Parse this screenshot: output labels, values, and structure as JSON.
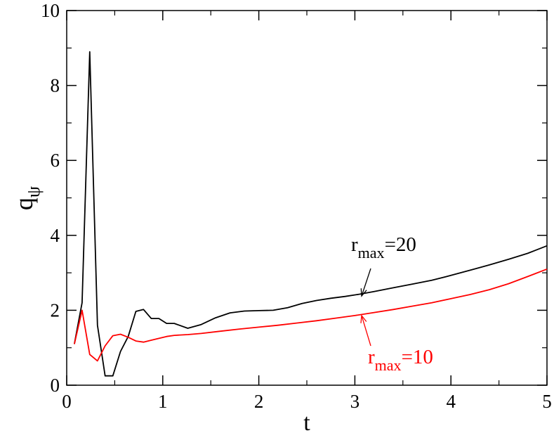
{
  "chart_data": {
    "type": "line",
    "title": "",
    "xlabel": "t",
    "ylabel": "q",
    "ylabel_subscript": "ψ",
    "xlim": [
      0,
      5
    ],
    "ylim": [
      0,
      10
    ],
    "grid": false,
    "x_ticks": [
      0,
      1,
      2,
      3,
      4,
      5
    ],
    "x_tick_labels": [
      "0",
      "1",
      "2",
      "3",
      "4",
      "5"
    ],
    "y_ticks": [
      0,
      2,
      4,
      6,
      8,
      10
    ],
    "y_tick_labels": [
      "0",
      "2",
      "4",
      "6",
      "8",
      "10"
    ],
    "series": [
      {
        "color": "#000000",
        "x": [
          0.08,
          0.16,
          0.24,
          0.32,
          0.4,
          0.48,
          0.56,
          0.64,
          0.72,
          0.8,
          0.88,
          0.96,
          1.04,
          1.12,
          1.26,
          1.4,
          1.55,
          1.7,
          1.85,
          2.0,
          2.15,
          2.3,
          2.45,
          2.6,
          2.75,
          2.9,
          3.05,
          3.2,
          3.4,
          3.6,
          3.8,
          4.0,
          4.2,
          4.4,
          4.6,
          4.8,
          5.0
        ],
        "y": [
          1.1,
          2.2,
          8.9,
          1.6,
          0.25,
          0.25,
          0.9,
          1.3,
          1.97,
          2.02,
          1.78,
          1.78,
          1.65,
          1.65,
          1.52,
          1.62,
          1.8,
          1.93,
          1.98,
          1.99,
          2.0,
          2.07,
          2.18,
          2.26,
          2.32,
          2.37,
          2.43,
          2.5,
          2.6,
          2.7,
          2.8,
          2.93,
          3.07,
          3.21,
          3.36,
          3.52,
          3.72
        ]
      },
      {
        "color": "#ff0000",
        "x": [
          0.08,
          0.16,
          0.24,
          0.32,
          0.4,
          0.48,
          0.56,
          0.64,
          0.72,
          0.8,
          0.88,
          0.96,
          1.04,
          1.12,
          1.26,
          1.4,
          1.6,
          1.8,
          2.0,
          2.2,
          2.4,
          2.6,
          2.8,
          3.0,
          3.2,
          3.4,
          3.6,
          3.8,
          4.0,
          4.2,
          4.4,
          4.6,
          4.8,
          5.0
        ],
        "y": [
          1.1,
          2.0,
          0.82,
          0.65,
          1.05,
          1.32,
          1.36,
          1.28,
          1.18,
          1.15,
          1.2,
          1.25,
          1.3,
          1.33,
          1.35,
          1.38,
          1.44,
          1.5,
          1.55,
          1.6,
          1.66,
          1.72,
          1.79,
          1.86,
          1.94,
          2.02,
          2.11,
          2.2,
          2.31,
          2.42,
          2.55,
          2.71,
          2.9,
          3.1
        ]
      }
    ],
    "annotations": [
      {
        "label": "r",
        "subscript": "max",
        "value": "=20",
        "color": "#000000",
        "arrow_to": [
          3.07,
          2.38
        ]
      },
      {
        "label": "r",
        "subscript": "max",
        "value": "=10",
        "color": "#ff0000",
        "arrow_to": [
          3.07,
          1.86
        ]
      }
    ]
  }
}
